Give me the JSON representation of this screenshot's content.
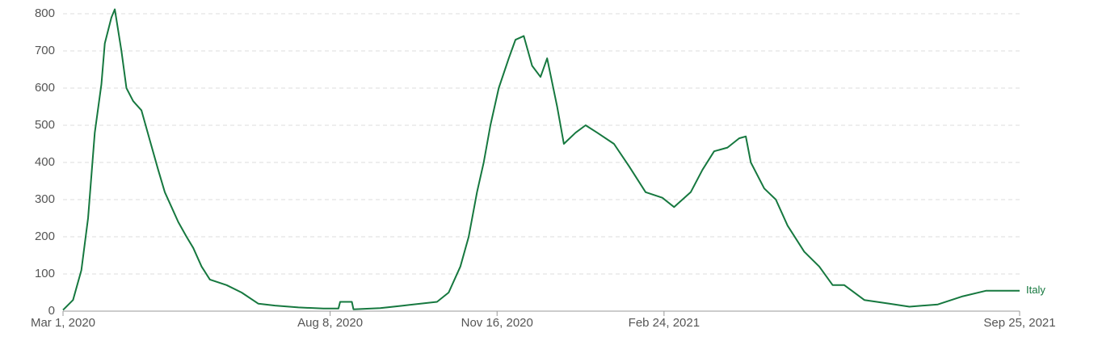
{
  "chart_data": {
    "type": "line",
    "x": [
      "2020-03-01",
      "2020-03-07",
      "2020-03-12",
      "2020-03-16",
      "2020-03-20",
      "2020-03-24",
      "2020-03-26",
      "2020-03-30",
      "2020-04-01",
      "2020-04-05",
      "2020-04-08",
      "2020-04-12",
      "2020-04-17",
      "2020-04-22",
      "2020-04-27",
      "2020-05-01",
      "2020-05-05",
      "2020-05-09",
      "2020-05-14",
      "2020-05-18",
      "2020-05-23",
      "2020-05-28",
      "2020-06-07",
      "2020-06-16",
      "2020-06-26",
      "2020-07-06",
      "2020-07-20",
      "2020-08-04",
      "2020-08-13",
      "2020-08-14",
      "2020-08-21",
      "2020-08-22",
      "2020-09-07",
      "2020-09-21",
      "2020-10-11",
      "2020-10-18",
      "2020-10-25",
      "2020-10-30",
      "2020-11-04",
      "2020-11-08",
      "2020-11-12",
      "2020-11-17",
      "2020-11-23",
      "2020-11-27",
      "2020-12-02",
      "2020-12-07",
      "2020-12-12",
      "2020-12-16",
      "2020-12-22",
      "2020-12-26",
      "2021-01-02",
      "2021-01-08",
      "2021-01-15",
      "2021-01-25",
      "2021-02-03",
      "2021-02-13",
      "2021-02-23",
      "2021-03-02",
      "2021-03-12",
      "2021-03-19",
      "2021-03-26",
      "2021-04-03",
      "2021-04-10",
      "2021-04-14",
      "2021-04-17",
      "2021-04-25",
      "2021-05-02",
      "2021-05-09",
      "2021-05-19",
      "2021-05-28",
      "2021-06-05",
      "2021-06-12",
      "2021-06-24",
      "2021-07-09",
      "2021-07-21",
      "2021-08-07",
      "2021-08-22",
      "2021-09-05",
      "2021-09-25"
    ],
    "series": [
      {
        "name": "Italy",
        "color": "#16783f",
        "values": [
          3,
          30,
          110,
          250,
          480,
          610,
          720,
          790,
          812,
          700,
          600,
          565,
          540,
          460,
          380,
          320,
          280,
          240,
          200,
          170,
          120,
          85,
          70,
          50,
          20,
          15,
          10,
          7,
          7,
          25,
          25,
          5,
          8,
          15,
          25,
          50,
          120,
          200,
          320,
          400,
          500,
          600,
          680,
          730,
          740,
          660,
          630,
          680,
          550,
          450,
          480,
          500,
          480,
          450,
          390,
          320,
          305,
          280,
          320,
          380,
          430,
          440,
          465,
          470,
          400,
          330,
          300,
          230,
          160,
          120,
          70,
          70,
          30,
          20,
          12,
          18,
          40,
          55,
          55
        ]
      }
    ],
    "xlim": [
      "2020-03-01",
      "2021-09-25"
    ],
    "xticks": [
      {
        "value": "2020-03-01",
        "label": "Mar 1, 2020"
      },
      {
        "value": "2020-08-08",
        "label": "Aug 8, 2020"
      },
      {
        "value": "2020-11-16",
        "label": "Nov 16, 2020"
      },
      {
        "value": "2021-02-24",
        "label": "Feb 24, 2021"
      },
      {
        "value": "2021-09-25",
        "label": "Sep 25, 2021"
      }
    ],
    "ylim": [
      0,
      800
    ],
    "yticks": [
      0,
      100,
      200,
      300,
      400,
      500,
      600,
      700,
      800
    ],
    "grid": true
  }
}
